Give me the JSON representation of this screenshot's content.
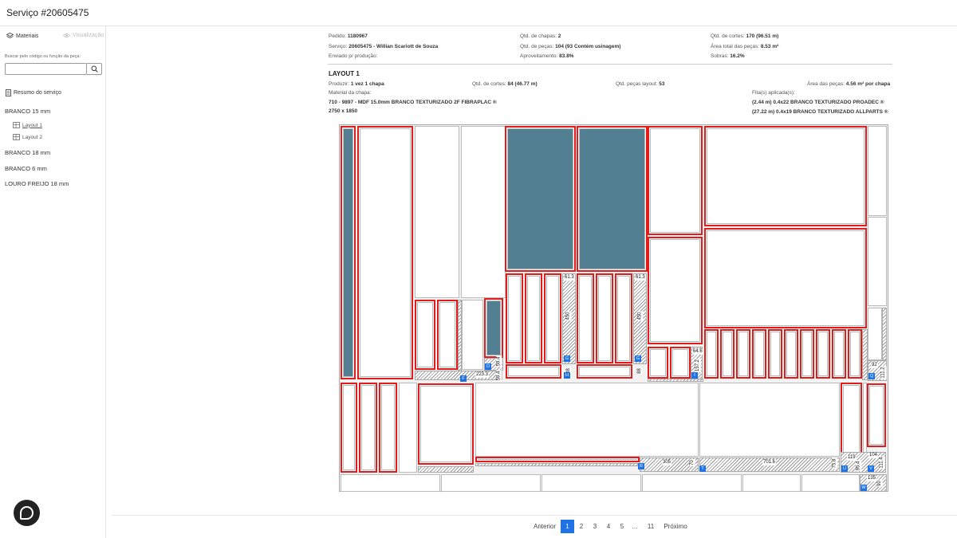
{
  "header": {
    "title": "Serviço #20605475"
  },
  "sidebar": {
    "tab_materials": "Materiais",
    "tab_view": "Visualização",
    "search_label": "Buscar pelo código ou função da peça:",
    "search_placeholder": "",
    "resumo": "Resumo do serviço",
    "materials": [
      {
        "name": "BRANCO 15 mm",
        "layouts": [
          "Layout 1",
          "Layout 2"
        ]
      },
      {
        "name": "BRANCO 18 mm"
      },
      {
        "name": "BRANCO 6 mm"
      },
      {
        "name": "LOURO FREIJO 18 mm"
      }
    ]
  },
  "summary": {
    "pedido_label": "Pedido:",
    "pedido": "1180967",
    "servico_label": "Serviço:",
    "servico": "20605475 - Willian Scariott de Souza",
    "enviado_label": "Enviado p/ produção:",
    "chapas_label": "Qtd. de chapas:",
    "chapas": "2",
    "pecas_label": "Qtd. de peças:",
    "pecas": "104 (93 Contém usinagem)",
    "aprov_label": "Aproveitamento:",
    "aprov": "83.8%",
    "cortes_label": "Qtd. de cortes:",
    "cortes": "170 (96.51 m)",
    "area_label": "Área total das peças:",
    "area": "8.53 m²",
    "sobras_label": "Sobras:",
    "sobras": "16.2%"
  },
  "layout": {
    "title": "LAYOUT 1",
    "produzir_label": "Produzir:",
    "produzir": "1 vez 1 chapa",
    "cortes_label": "Qtd. de cortes:",
    "cortes": "84 (46.77 m)",
    "pecas_label": "Qtd. peças layout:",
    "pecas": "53",
    "area_label": "Área das peças:",
    "area": "4.56 m² por chapa",
    "material_label": "Material da chapa:",
    "material": "710 - 9897 - MDF 15.0mm BRANCO TEXTURIZADO 2F FIBRAPLAC ®",
    "size": "2750 x 1850",
    "fita_label": "Fita(s) aplicada(s):",
    "fita1": "(2.44 m) 0.4x22 BRANCO TEXTURIZADO PROADEC ®",
    "fita2": "(27.22 m) 0.4x19 BRANCO TEXTURIZADO ALLPARTS ®"
  },
  "diagram": {
    "dims": [
      "61.3",
      "450",
      "61.3",
      "450",
      "64.6",
      "157.2",
      "223.3",
      "92",
      "111.2",
      "305",
      "70",
      "701.6",
      "75.8",
      "119",
      "95.4",
      "104",
      "111.4",
      "135",
      "90",
      "88",
      "88",
      "59.4",
      "59.4"
    ],
    "badges": [
      "F",
      "D",
      "G",
      "G",
      "H",
      "I",
      "Q",
      "R",
      "T",
      "U",
      "V",
      "W"
    ]
  },
  "pagination": {
    "prev": "Anterior",
    "pages": [
      "1",
      "2",
      "3",
      "4",
      "5",
      "...",
      "11"
    ],
    "next": "Próximo"
  },
  "colors": {
    "accent": "#1e73e8",
    "edge_band": "#e41b1b",
    "blocked": "#537f93"
  }
}
